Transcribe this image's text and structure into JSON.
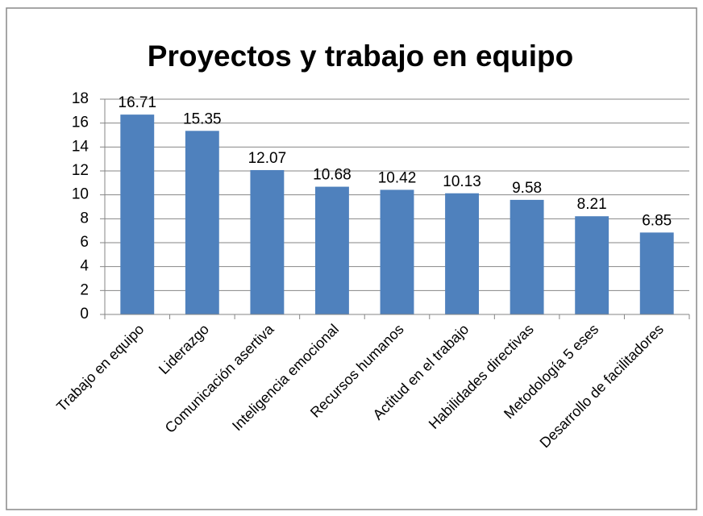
{
  "chart_data": {
    "type": "bar",
    "title": "Proyectos y trabajo en equipo",
    "categories": [
      "Trabajo en equipo",
      "Liderazgo",
      "Comunicación asertiva",
      "Inteligencia emocional",
      "Recursos humanos",
      "Actitud en el trabajo",
      "Habilidades directivas",
      "Metodología 5 eses",
      "Desarrollo de facilitadores"
    ],
    "values": [
      16.71,
      15.35,
      12.07,
      10.68,
      10.42,
      10.13,
      9.58,
      8.21,
      6.85
    ],
    "color": "#4f81bd",
    "ylim": [
      0,
      18
    ],
    "yticks": [
      0,
      2,
      4,
      6,
      8,
      10,
      12,
      14,
      16,
      18
    ],
    "grid": true
  }
}
